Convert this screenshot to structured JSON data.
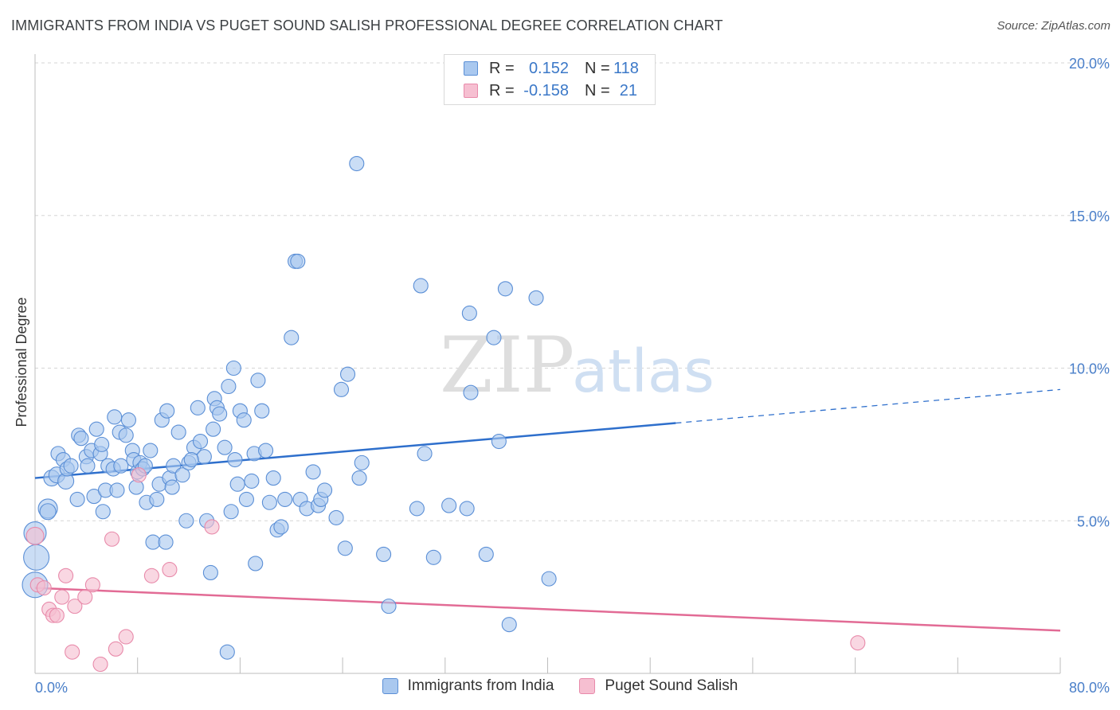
{
  "title": "IMMIGRANTS FROM INDIA VS PUGET SOUND SALISH PROFESSIONAL DEGREE CORRELATION CHART",
  "source": "Source: ZipAtlas.com",
  "watermark": {
    "zip": "ZIP",
    "atlas": "atlas"
  },
  "legend": {
    "rows": [
      {
        "r_label": "R =",
        "r_value": "0.152",
        "n_label": "N =",
        "n_value": "118"
      },
      {
        "r_label": "R =",
        "r_value": "-0.158",
        "n_label": "N =",
        "n_value": "21"
      }
    ]
  },
  "colors": {
    "india_fill": "#a9c8ef",
    "india_stroke": "#5b8fd6",
    "india_line": "#2e6fcc",
    "salish_fill": "#f6bfd1",
    "salish_stroke": "#e88aaa",
    "salish_line": "#e26b95",
    "tick_label": "#4a7fc9",
    "grid": "#d5d5d5"
  },
  "chart_data": {
    "type": "scatter",
    "title": "IMMIGRANTS FROM INDIA VS PUGET SOUND SALISH PROFESSIONAL DEGREE CORRELATION CHART",
    "xlabel": "",
    "ylabel": "Professional Degree",
    "xlim": [
      0,
      80
    ],
    "ylim": [
      0,
      20
    ],
    "x_tick_labels": [
      "0.0%",
      "80.0%"
    ],
    "y_ticks": [
      5,
      10,
      15,
      20
    ],
    "y_tick_labels": [
      "5.0%",
      "10.0%",
      "15.0%",
      "20.0%"
    ],
    "legend_labels": [
      "Immigrants from India",
      "Puget Sound Salish"
    ],
    "series": [
      {
        "name": "Immigrants from India",
        "R": 0.152,
        "N": 118,
        "trend": {
          "x0": 0,
          "y0": 6.4,
          "x1": 50,
          "y1": 8.2,
          "dash_to_x": 80,
          "dash_to_y": 9.3
        },
        "points": [
          [
            0.0,
            4.6,
            14
          ],
          [
            0.1,
            3.8,
            16
          ],
          [
            0.0,
            2.9,
            16
          ],
          [
            1.0,
            5.4,
            12
          ],
          [
            1.0,
            5.3,
            10
          ],
          [
            1.3,
            6.4,
            10
          ],
          [
            1.7,
            6.5,
            10
          ],
          [
            1.8,
            7.2,
            9
          ],
          [
            2.2,
            7.0,
            9
          ],
          [
            2.4,
            6.3,
            10
          ],
          [
            2.5,
            6.7,
            9
          ],
          [
            2.8,
            6.8,
            9
          ],
          [
            3.3,
            5.7,
            9
          ],
          [
            3.4,
            7.8,
            9
          ],
          [
            3.6,
            7.7,
            9
          ],
          [
            4.0,
            7.1,
            9
          ],
          [
            4.1,
            6.8,
            9
          ],
          [
            4.4,
            7.3,
            9
          ],
          [
            4.6,
            5.8,
            9
          ],
          [
            4.8,
            8.0,
            9
          ],
          [
            5.1,
            7.2,
            9
          ],
          [
            5.2,
            7.5,
            9
          ],
          [
            5.3,
            5.3,
            9
          ],
          [
            5.5,
            6.0,
            9
          ],
          [
            5.7,
            6.8,
            9
          ],
          [
            6.1,
            6.7,
            9
          ],
          [
            6.2,
            8.4,
            9
          ],
          [
            6.4,
            6.0,
            9
          ],
          [
            6.6,
            7.9,
            9
          ],
          [
            6.7,
            6.8,
            9
          ],
          [
            7.1,
            7.8,
            9
          ],
          [
            7.3,
            8.3,
            9
          ],
          [
            7.6,
            7.3,
            9
          ],
          [
            7.7,
            7.0,
            9
          ],
          [
            7.9,
            6.1,
            9
          ],
          [
            8.0,
            6.6,
            9
          ],
          [
            8.2,
            6.9,
            9
          ],
          [
            8.4,
            6.7,
            9
          ],
          [
            8.7,
            5.6,
            9
          ],
          [
            9.0,
            7.3,
            9
          ],
          [
            9.2,
            4.3,
            9
          ],
          [
            9.5,
            5.7,
            9
          ],
          [
            9.7,
            6.2,
            9
          ],
          [
            9.9,
            8.3,
            9
          ],
          [
            10.2,
            4.3,
            9
          ],
          [
            10.3,
            8.6,
            9
          ],
          [
            10.5,
            6.4,
            9
          ],
          [
            10.7,
            6.1,
            9
          ],
          [
            10.8,
            6.8,
            9
          ],
          [
            11.2,
            7.9,
            9
          ],
          [
            11.5,
            6.5,
            9
          ],
          [
            11.8,
            5.0,
            9
          ],
          [
            12.0,
            6.9,
            9
          ],
          [
            12.4,
            7.4,
            9
          ],
          [
            12.7,
            8.7,
            9
          ],
          [
            12.9,
            7.6,
            9
          ],
          [
            13.2,
            7.1,
            9
          ],
          [
            13.4,
            5.0,
            9
          ],
          [
            13.7,
            3.3,
            9
          ],
          [
            13.9,
            8.0,
            9
          ],
          [
            14.0,
            9.0,
            9
          ],
          [
            14.2,
            8.7,
            9
          ],
          [
            14.4,
            8.5,
            9
          ],
          [
            14.8,
            7.4,
            9
          ],
          [
            15.1,
            9.4,
            9
          ],
          [
            15.3,
            5.3,
            9
          ],
          [
            15.5,
            10.0,
            9
          ],
          [
            15.6,
            7.0,
            9
          ],
          [
            15.8,
            6.2,
            9
          ],
          [
            16.0,
            8.6,
            9
          ],
          [
            16.3,
            8.3,
            9
          ],
          [
            16.5,
            5.7,
            9
          ],
          [
            16.9,
            6.3,
            9
          ],
          [
            17.1,
            7.2,
            9
          ],
          [
            17.2,
            3.6,
            9
          ],
          [
            17.4,
            9.6,
            9
          ],
          [
            17.7,
            8.6,
            9
          ],
          [
            18.0,
            7.3,
            9
          ],
          [
            18.3,
            5.6,
            9
          ],
          [
            18.6,
            6.4,
            9
          ],
          [
            18.9,
            4.7,
            9
          ],
          [
            19.2,
            4.8,
            9
          ],
          [
            20.0,
            11.0,
            9
          ],
          [
            20.3,
            13.5,
            9
          ],
          [
            20.5,
            13.5,
            9
          ],
          [
            20.7,
            5.7,
            9
          ],
          [
            21.2,
            5.4,
            9
          ],
          [
            21.7,
            6.6,
            9
          ],
          [
            22.1,
            5.5,
            9
          ],
          [
            22.3,
            5.7,
            9
          ],
          [
            22.6,
            6.0,
            9
          ],
          [
            23.5,
            5.1,
            9
          ],
          [
            23.9,
            9.3,
            9
          ],
          [
            24.2,
            4.1,
            9
          ],
          [
            24.4,
            9.8,
            9
          ],
          [
            25.1,
            16.7,
            9
          ],
          [
            25.3,
            6.4,
            9
          ],
          [
            25.5,
            6.9,
            9
          ],
          [
            27.2,
            3.9,
            9
          ],
          [
            27.6,
            2.2,
            9
          ],
          [
            29.8,
            5.4,
            9
          ],
          [
            30.1,
            12.7,
            9
          ],
          [
            30.4,
            7.2,
            9
          ],
          [
            31.1,
            3.8,
            9
          ],
          [
            32.3,
            5.5,
            9
          ],
          [
            33.7,
            5.4,
            9
          ],
          [
            33.9,
            11.8,
            9
          ],
          [
            34.0,
            9.2,
            9
          ],
          [
            35.2,
            3.9,
            9
          ],
          [
            35.8,
            11.0,
            9
          ],
          [
            36.2,
            7.6,
            9
          ],
          [
            36.7,
            12.6,
            9
          ],
          [
            37.0,
            1.6,
            9
          ],
          [
            39.1,
            12.3,
            9
          ],
          [
            40.1,
            3.1,
            9
          ],
          [
            15.0,
            0.7,
            9
          ],
          [
            8.6,
            6.8,
            9
          ],
          [
            12.2,
            7.0,
            9
          ],
          [
            19.5,
            5.7,
            9
          ]
        ]
      },
      {
        "name": "Puget Sound Salish",
        "R": -0.158,
        "N": 21,
        "trend": {
          "x0": 0,
          "y0": 2.8,
          "x1": 80,
          "y1": 1.4
        },
        "points": [
          [
            0.0,
            4.5,
            11
          ],
          [
            0.2,
            2.9,
            9
          ],
          [
            0.7,
            2.8,
            9
          ],
          [
            1.1,
            2.1,
            9
          ],
          [
            1.4,
            1.9,
            9
          ],
          [
            1.7,
            1.9,
            9
          ],
          [
            2.1,
            2.5,
            9
          ],
          [
            2.4,
            3.2,
            9
          ],
          [
            2.9,
            0.7,
            9
          ],
          [
            3.1,
            2.2,
            9
          ],
          [
            3.9,
            2.5,
            9
          ],
          [
            4.5,
            2.9,
            9
          ],
          [
            5.1,
            0.3,
            9
          ],
          [
            6.0,
            4.4,
            9
          ],
          [
            6.3,
            0.8,
            9
          ],
          [
            7.1,
            1.2,
            9
          ],
          [
            8.1,
            6.5,
            9
          ],
          [
            9.1,
            3.2,
            9
          ],
          [
            10.5,
            3.4,
            9
          ],
          [
            13.8,
            4.8,
            9
          ],
          [
            64.2,
            1.0,
            9
          ]
        ]
      }
    ]
  }
}
